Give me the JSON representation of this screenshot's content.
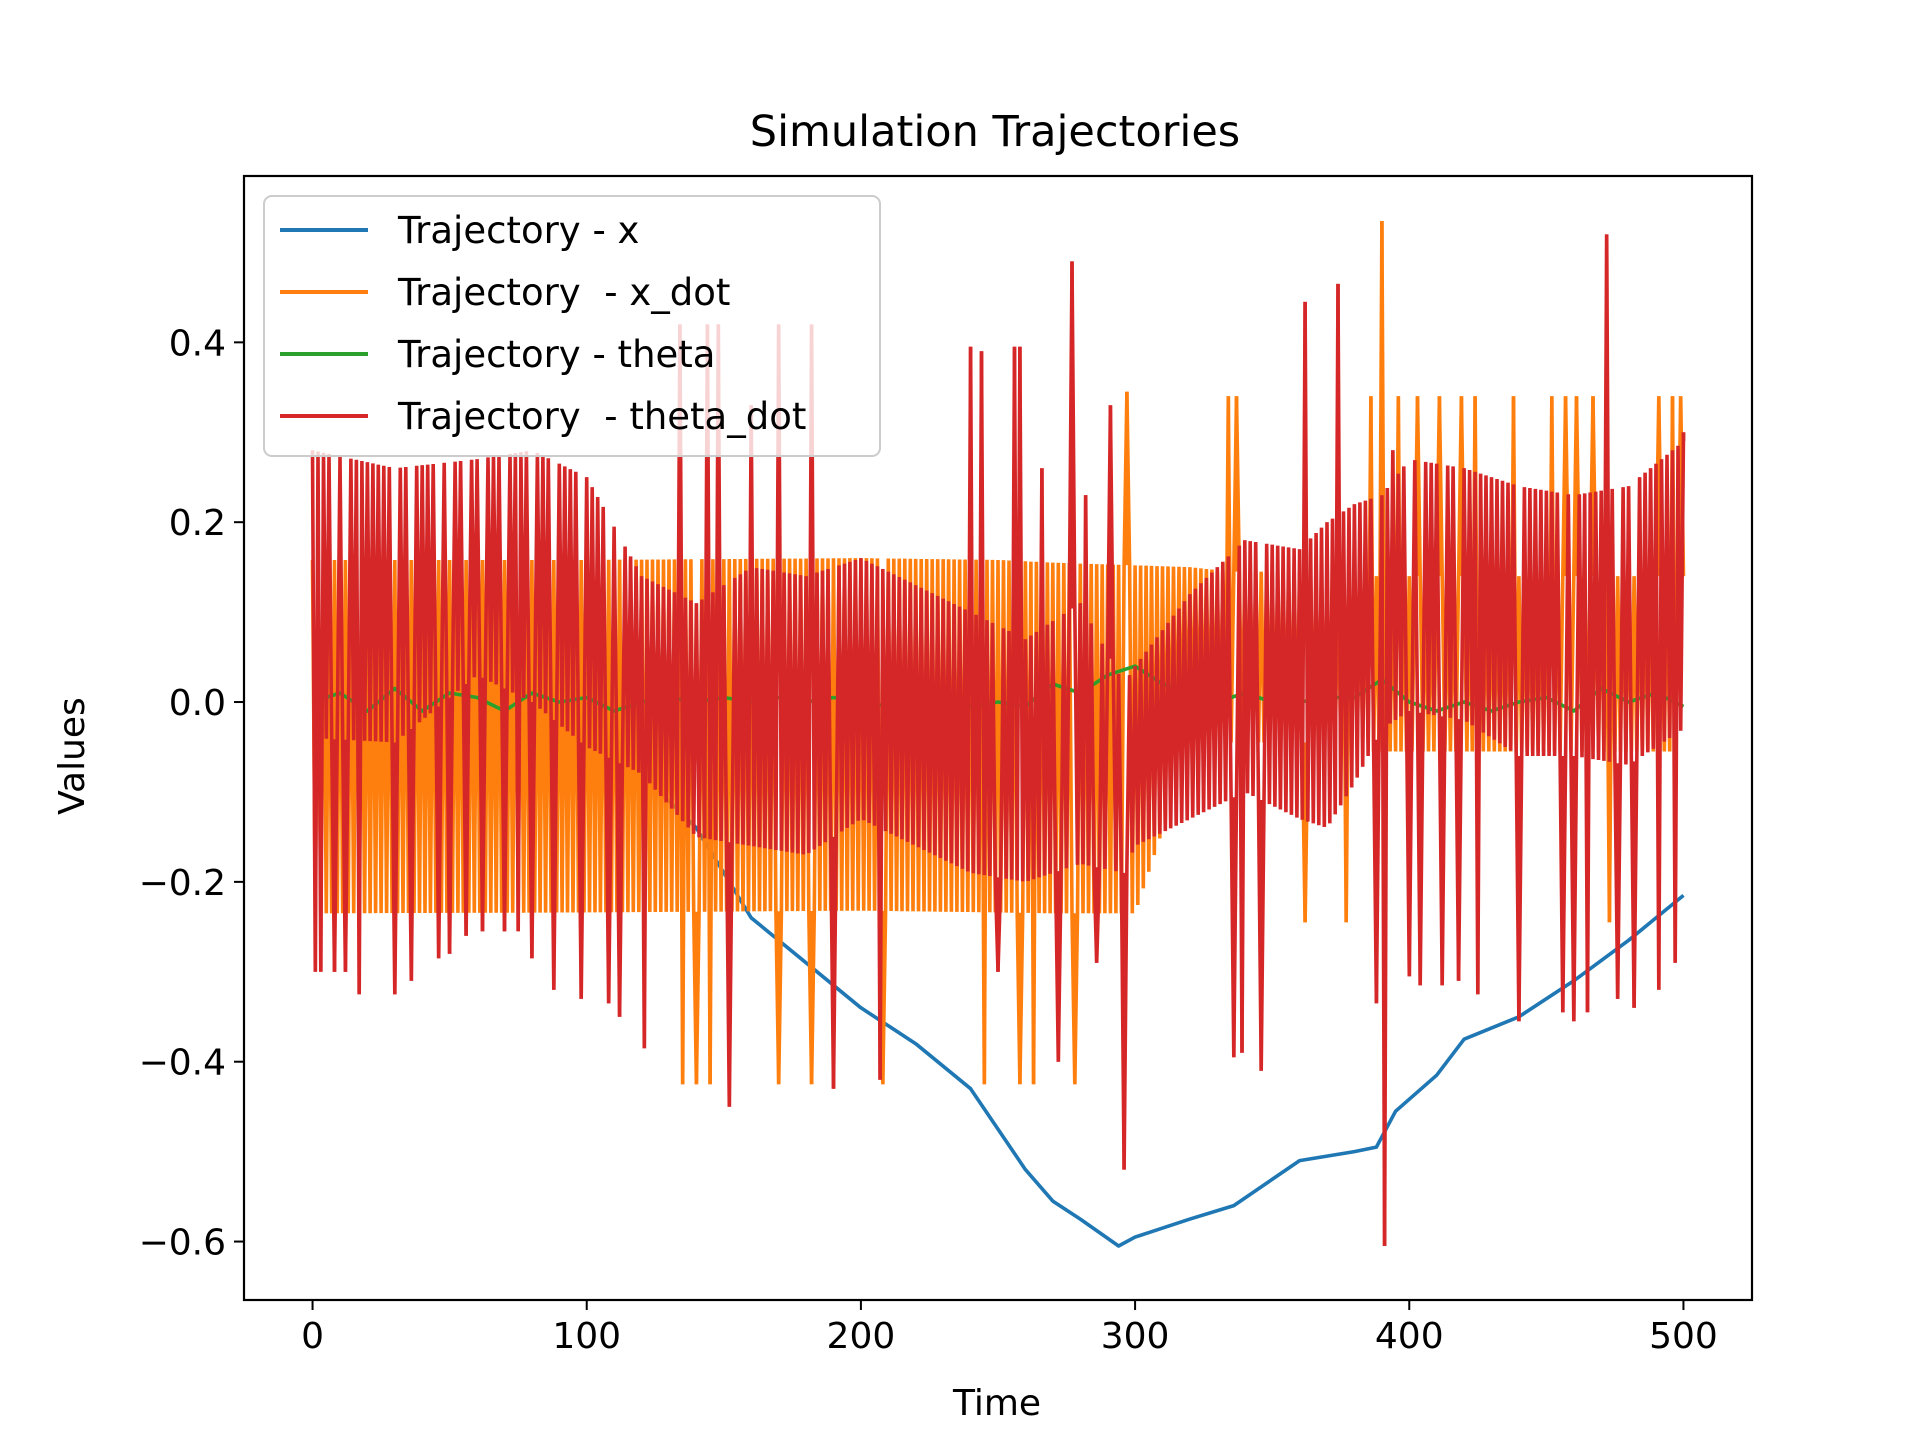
{
  "chart_data": {
    "type": "line",
    "title": "Simulation Trajectories",
    "xlabel": "Time",
    "ylabel": "Values",
    "xlim": [
      -25,
      525
    ],
    "ylim": [
      -0.665,
      0.585
    ],
    "x_ticks": [
      {
        "value": 0,
        "label": "0"
      },
      {
        "value": 100,
        "label": "100"
      },
      {
        "value": 200,
        "label": "200"
      },
      {
        "value": 300,
        "label": "300"
      },
      {
        "value": 400,
        "label": "400"
      },
      {
        "value": 500,
        "label": "500"
      }
    ],
    "y_ticks": [
      {
        "value": -0.6,
        "label": "−0.6"
      },
      {
        "value": -0.4,
        "label": "−0.4"
      },
      {
        "value": -0.2,
        "label": "−0.2"
      },
      {
        "value": 0.0,
        "label": "0.0"
      },
      {
        "value": 0.2,
        "label": "0.2"
      },
      {
        "value": 0.4,
        "label": "0.4"
      }
    ],
    "grid": false,
    "legend_position": "top-left",
    "series": [
      {
        "name": "Trajectory - x",
        "color": "#1f77b4",
        "x": [
          0,
          20,
          40,
          60,
          80,
          100,
          120,
          140,
          160,
          180,
          200,
          220,
          240,
          260,
          270,
          280,
          294,
          300,
          320,
          336,
          360,
          380,
          388,
          395,
          410,
          420,
          440,
          460,
          480,
          500
        ],
        "y": [
          -0.01,
          -0.015,
          -0.02,
          -0.03,
          -0.04,
          -0.055,
          -0.08,
          -0.14,
          -0.24,
          -0.29,
          -0.34,
          -0.38,
          -0.43,
          -0.52,
          -0.555,
          -0.575,
          -0.605,
          -0.595,
          -0.575,
          -0.56,
          -0.51,
          -0.5,
          -0.495,
          -0.455,
          -0.415,
          -0.375,
          -0.35,
          -0.31,
          -0.265,
          -0.215
        ]
      },
      {
        "name": "Trajectory  - x_dot",
        "color": "#ff7f0e",
        "band": {
          "x": [
            0,
            100,
            200,
            250,
            270,
            300,
            320,
            335,
            336,
            385,
            386,
            500
          ],
          "upper": [
            0.158,
            0.158,
            0.16,
            0.158,
            0.155,
            0.152,
            0.15,
            0.145,
            0.145,
            0.145,
            0.14,
            0.14
          ],
          "lower": [
            -0.235,
            -0.234,
            -0.232,
            -0.234,
            -0.235,
            -0.235,
            -0.05,
            -0.045,
            -0.045,
            -0.045,
            -0.055,
            -0.055
          ]
        },
        "spikes": [
          {
            "x": 135,
            "y": -0.425
          },
          {
            "x": 140,
            "y": -0.425
          },
          {
            "x": 145,
            "y": -0.425
          },
          {
            "x": 170,
            "y": -0.425
          },
          {
            "x": 182,
            "y": -0.425
          },
          {
            "x": 208,
            "y": -0.425
          },
          {
            "x": 245,
            "y": -0.425
          },
          {
            "x": 258,
            "y": -0.425
          },
          {
            "x": 263,
            "y": -0.425
          },
          {
            "x": 278,
            "y": -0.425
          },
          {
            "x": 297,
            "y": 0.345
          },
          {
            "x": 334,
            "y": 0.34
          },
          {
            "x": 337,
            "y": 0.34
          },
          {
            "x": 362,
            "y": -0.245
          },
          {
            "x": 377,
            "y": -0.245
          },
          {
            "x": 390,
            "y": 0.535
          },
          {
            "x": 386,
            "y": 0.34
          },
          {
            "x": 396,
            "y": 0.34
          },
          {
            "x": 403,
            "y": 0.34
          },
          {
            "x": 411,
            "y": 0.34
          },
          {
            "x": 419,
            "y": 0.34
          },
          {
            "x": 424,
            "y": 0.34
          },
          {
            "x": 438,
            "y": 0.34
          },
          {
            "x": 452,
            "y": 0.34
          },
          {
            "x": 457,
            "y": 0.34
          },
          {
            "x": 461,
            "y": 0.34
          },
          {
            "x": 467,
            "y": 0.34
          },
          {
            "x": 473,
            "y": -0.245
          },
          {
            "x": 491,
            "y": 0.34
          },
          {
            "x": 496,
            "y": 0.34
          },
          {
            "x": 499,
            "y": 0.34
          }
        ]
      },
      {
        "name": "Trajectory - theta",
        "color": "#2ca02c",
        "x": [
          0,
          10,
          20,
          30,
          40,
          50,
          60,
          70,
          80,
          90,
          100,
          110,
          120,
          130,
          140,
          150,
          160,
          170,
          180,
          190,
          200,
          210,
          220,
          230,
          240,
          250,
          260,
          270,
          280,
          290,
          300,
          310,
          320,
          330,
          340,
          350,
          360,
          370,
          380,
          390,
          400,
          410,
          420,
          430,
          440,
          450,
          460,
          470,
          480,
          490,
          500
        ],
        "y": [
          0.0,
          0.01,
          -0.01,
          0.015,
          -0.01,
          0.01,
          0.005,
          -0.01,
          0.01,
          0.0,
          0.005,
          -0.01,
          0.0,
          0.005,
          0.0,
          0.005,
          0.0,
          0.005,
          0.0,
          0.005,
          0.0,
          -0.005,
          0.0,
          -0.01,
          -0.005,
          0.0,
          -0.005,
          0.02,
          0.01,
          0.03,
          0.04,
          0.02,
          0.01,
          0.0,
          0.01,
          0.0,
          0.0,
          0.005,
          0.005,
          0.025,
          0.0,
          -0.01,
          0.0,
          -0.01,
          0.0,
          0.005,
          -0.01,
          0.015,
          0.0,
          0.01,
          -0.005
        ]
      },
      {
        "name": "Trajectory  - theta_dot",
        "color": "#d62728",
        "band": {
          "x": [
            0,
            30,
            60,
            80,
            100,
            120,
            140,
            160,
            180,
            200,
            220,
            240,
            260,
            280,
            296,
            300,
            320,
            340,
            360,
            370,
            380,
            390,
            400,
            420,
            440,
            460,
            480,
            500
          ],
          "upper": [
            0.28,
            0.26,
            0.27,
            0.28,
            0.25,
            0.14,
            0.11,
            0.15,
            0.14,
            0.16,
            0.13,
            0.1,
            0.07,
            0.11,
            0.02,
            0.04,
            0.12,
            0.18,
            0.17,
            0.2,
            0.22,
            0.23,
            0.27,
            0.26,
            0.24,
            0.23,
            0.24,
            0.29
          ],
          "lower": [
            -0.04,
            -0.045,
            0.03,
            0.0,
            -0.05,
            -0.08,
            -0.15,
            -0.16,
            -0.17,
            -0.13,
            -0.16,
            -0.19,
            -0.2,
            -0.18,
            -0.19,
            -0.16,
            -0.13,
            -0.1,
            -0.13,
            -0.14,
            -0.09,
            -0.03,
            -0.01,
            -0.02,
            -0.06,
            -0.06,
            -0.07,
            -0.03
          ]
        },
        "spikes": [
          {
            "x": 1,
            "y": -0.3
          },
          {
            "x": 3,
            "y": -0.3
          },
          {
            "x": 8,
            "y": -0.3
          },
          {
            "x": 12,
            "y": -0.3
          },
          {
            "x": 17,
            "y": -0.325
          },
          {
            "x": 30,
            "y": -0.325
          },
          {
            "x": 36,
            "y": -0.31
          },
          {
            "x": 46,
            "y": -0.285
          },
          {
            "x": 50,
            "y": -0.28
          },
          {
            "x": 56,
            "y": -0.26
          },
          {
            "x": 62,
            "y": -0.255
          },
          {
            "x": 70,
            "y": -0.255
          },
          {
            "x": 75,
            "y": -0.255
          },
          {
            "x": 80,
            "y": -0.285
          },
          {
            "x": 88,
            "y": -0.32
          },
          {
            "x": 98,
            "y": -0.33
          },
          {
            "x": 108,
            "y": -0.335
          },
          {
            "x": 112,
            "y": -0.35
          },
          {
            "x": 121,
            "y": -0.385
          },
          {
            "x": 134,
            "y": 0.42
          },
          {
            "x": 144,
            "y": 0.42
          },
          {
            "x": 148,
            "y": 0.42
          },
          {
            "x": 152,
            "y": -0.45
          },
          {
            "x": 160,
            "y": 0.33
          },
          {
            "x": 170,
            "y": 0.42
          },
          {
            "x": 182,
            "y": 0.42
          },
          {
            "x": 190,
            "y": -0.43
          },
          {
            "x": 207,
            "y": -0.42
          },
          {
            "x": 240,
            "y": 0.395
          },
          {
            "x": 244,
            "y": 0.39
          },
          {
            "x": 250,
            "y": -0.3
          },
          {
            "x": 256,
            "y": 0.395
          },
          {
            "x": 258,
            "y": 0.395
          },
          {
            "x": 266,
            "y": 0.26
          },
          {
            "x": 272,
            "y": -0.4
          },
          {
            "x": 277,
            "y": 0.49
          },
          {
            "x": 282,
            "y": 0.23
          },
          {
            "x": 286,
            "y": -0.29
          },
          {
            "x": 291,
            "y": 0.33
          },
          {
            "x": 296,
            "y": -0.52
          },
          {
            "x": 336,
            "y": -0.395
          },
          {
            "x": 339,
            "y": -0.39
          },
          {
            "x": 346,
            "y": -0.41
          },
          {
            "x": 362,
            "y": 0.445
          },
          {
            "x": 374,
            "y": 0.465
          },
          {
            "x": 388,
            "y": -0.335
          },
          {
            "x": 391,
            "y": -0.605
          },
          {
            "x": 394,
            "y": 0.28
          },
          {
            "x": 400,
            "y": -0.305
          },
          {
            "x": 404,
            "y": -0.315
          },
          {
            "x": 412,
            "y": -0.315
          },
          {
            "x": 418,
            "y": -0.31
          },
          {
            "x": 425,
            "y": -0.325
          },
          {
            "x": 440,
            "y": -0.355
          },
          {
            "x": 456,
            "y": -0.345
          },
          {
            "x": 460,
            "y": -0.355
          },
          {
            "x": 465,
            "y": -0.345
          },
          {
            "x": 472,
            "y": 0.52
          },
          {
            "x": 476,
            "y": -0.33
          },
          {
            "x": 482,
            "y": -0.34
          },
          {
            "x": 491,
            "y": -0.32
          },
          {
            "x": 497,
            "y": -0.29
          },
          {
            "x": 500,
            "y": 0.3
          }
        ]
      }
    ]
  }
}
